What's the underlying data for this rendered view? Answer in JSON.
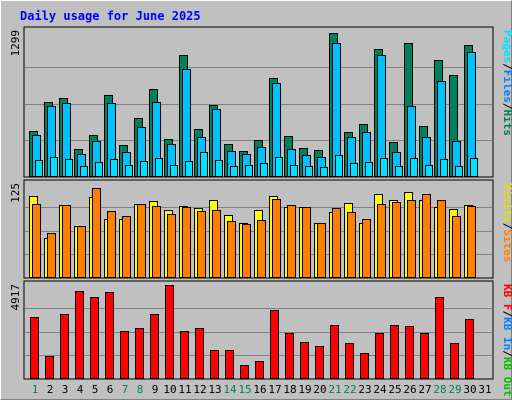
{
  "title": "Daily usage for June 2025",
  "colors": {
    "title": "#0000ff",
    "hits": "#00805c",
    "files": "#00c0ff",
    "pages": "#00e0ff",
    "visits": "#ffff00",
    "sites": "#ff8000",
    "kb_f": "#ff0000",
    "kb_in": "#0080ff",
    "kb_out": "#00c000",
    "grid": "#808080",
    "panel": "#c0c0c0",
    "weekend_day": "#00805c",
    "weekday_day": "#000000"
  },
  "chart_data": [
    {
      "type": "bar",
      "panel": "top",
      "max_label": "1299",
      "ylim": [
        0,
        1299
      ],
      "legend": [
        "Pages",
        "/",
        "Files",
        "/",
        "Hits"
      ],
      "grid": true,
      "categories": [
        "1",
        "2",
        "3",
        "4",
        "5",
        "6",
        "7",
        "8",
        "9",
        "10",
        "11",
        "12",
        "13",
        "14",
        "15",
        "16",
        "17",
        "18",
        "19",
        "20",
        "21",
        "22",
        "23",
        "24",
        "25",
        "26",
        "27",
        "28",
        "29",
        "30",
        "31"
      ],
      "series": [
        {
          "name": "Hits",
          "values": [
            405,
            665,
            695,
            245,
            370,
            725,
            285,
            525,
            775,
            340,
            1080,
            420,
            635,
            290,
            230,
            330,
            875,
            360,
            255,
            235,
            1270,
            400,
            465,
            1130,
            305,
            1180,
            455,
            1035,
            905,
            1165,
            0
          ]
        },
        {
          "name": "Files",
          "values": [
            370,
            625,
            655,
            200,
            315,
            650,
            225,
            440,
            665,
            290,
            955,
            350,
            600,
            230,
            205,
            265,
            830,
            245,
            195,
            180,
            1185,
            350,
            395,
            1075,
            220,
            625,
            355,
            845,
            315,
            1105,
            0
          ]
        },
        {
          "name": "Pages",
          "values": [
            150,
            175,
            160,
            100,
            130,
            160,
            110,
            140,
            165,
            110,
            145,
            220,
            150,
            95,
            105,
            120,
            175,
            110,
            95,
            90,
            195,
            120,
            130,
            165,
            100,
            170,
            110,
            155,
            100,
            165,
            0
          ]
        }
      ]
    },
    {
      "type": "bar",
      "panel": "middle",
      "max_label": "125",
      "ylim": [
        0,
        125
      ],
      "legend": [
        "Visits",
        "/",
        "Sites"
      ],
      "grid": true,
      "categories": [
        "1",
        "2",
        "3",
        "4",
        "5",
        "6",
        "7",
        "8",
        "9",
        "10",
        "11",
        "12",
        "13",
        "14",
        "15",
        "16",
        "17",
        "18",
        "19",
        "20",
        "21",
        "22",
        "23",
        "24",
        "25",
        "26",
        "27",
        "28",
        "29",
        "30",
        "31"
      ],
      "series": [
        {
          "name": "Visits",
          "values": [
            108,
            52,
            96,
            69,
            106,
            77,
            78,
            98,
            101,
            89,
            95,
            92,
            103,
            83,
            73,
            89,
            108,
            94,
            94,
            73,
            87,
            99,
            72,
            110,
            103,
            113,
            102,
            93,
            91,
            96,
            0
          ]
        },
        {
          "name": "Sites",
          "values": [
            98,
            59,
            96,
            69,
            118,
            88,
            81,
            98,
            95,
            84,
            94,
            88,
            90,
            75,
            71,
            76,
            104,
            96,
            93,
            72,
            92,
            87,
            77,
            98,
            100,
            103,
            110,
            103,
            82,
            95,
            0
          ]
        }
      ]
    },
    {
      "type": "bar",
      "panel": "bottom",
      "max_label": "4917",
      "ylim": [
        0,
        4917
      ],
      "legend": [
        "KB F",
        "/",
        "KB In",
        "/",
        "KB Out"
      ],
      "grid": true,
      "categories": [
        "1",
        "2",
        "3",
        "4",
        "5",
        "6",
        "7",
        "8",
        "9",
        "10",
        "11",
        "12",
        "13",
        "14",
        "15",
        "16",
        "17",
        "18",
        "19",
        "20",
        "21",
        "22",
        "23",
        "24",
        "25",
        "26",
        "27",
        "28",
        "29",
        "30",
        "31"
      ],
      "series": [
        {
          "name": "KB F",
          "values": [
            3200,
            1190,
            3390,
            4580,
            4220,
            4510,
            2460,
            2640,
            3390,
            4860,
            2460,
            2650,
            1480,
            1480,
            740,
            920,
            3550,
            2360,
            1920,
            1700,
            2820,
            1860,
            1370,
            2400,
            2800,
            2750,
            2370,
            4220,
            1880,
            3110,
            0
          ]
        },
        {
          "name": "KB In",
          "values": [
            0,
            0,
            0,
            0,
            0,
            0,
            0,
            0,
            0,
            0,
            0,
            0,
            0,
            0,
            0,
            0,
            0,
            0,
            0,
            0,
            0,
            0,
            0,
            0,
            0,
            0,
            0,
            0,
            0,
            0,
            0
          ]
        },
        {
          "name": "KB Out",
          "values": [
            0,
            0,
            0,
            0,
            0,
            0,
            0,
            0,
            0,
            0,
            0,
            0,
            0,
            0,
            0,
            0,
            0,
            0,
            0,
            0,
            0,
            0,
            0,
            0,
            0,
            0,
            0,
            0,
            0,
            0,
            0
          ]
        }
      ]
    }
  ],
  "x_axis": {
    "days": [
      "1",
      "2",
      "3",
      "4",
      "5",
      "6",
      "7",
      "8",
      "9",
      "10",
      "11",
      "12",
      "13",
      "14",
      "15",
      "16",
      "17",
      "18",
      "19",
      "20",
      "21",
      "22",
      "23",
      "24",
      "25",
      "26",
      "27",
      "28",
      "29",
      "30",
      "31"
    ],
    "weekend_days": [
      "1",
      "7",
      "8",
      "14",
      "15",
      "21",
      "22",
      "28",
      "29"
    ]
  }
}
